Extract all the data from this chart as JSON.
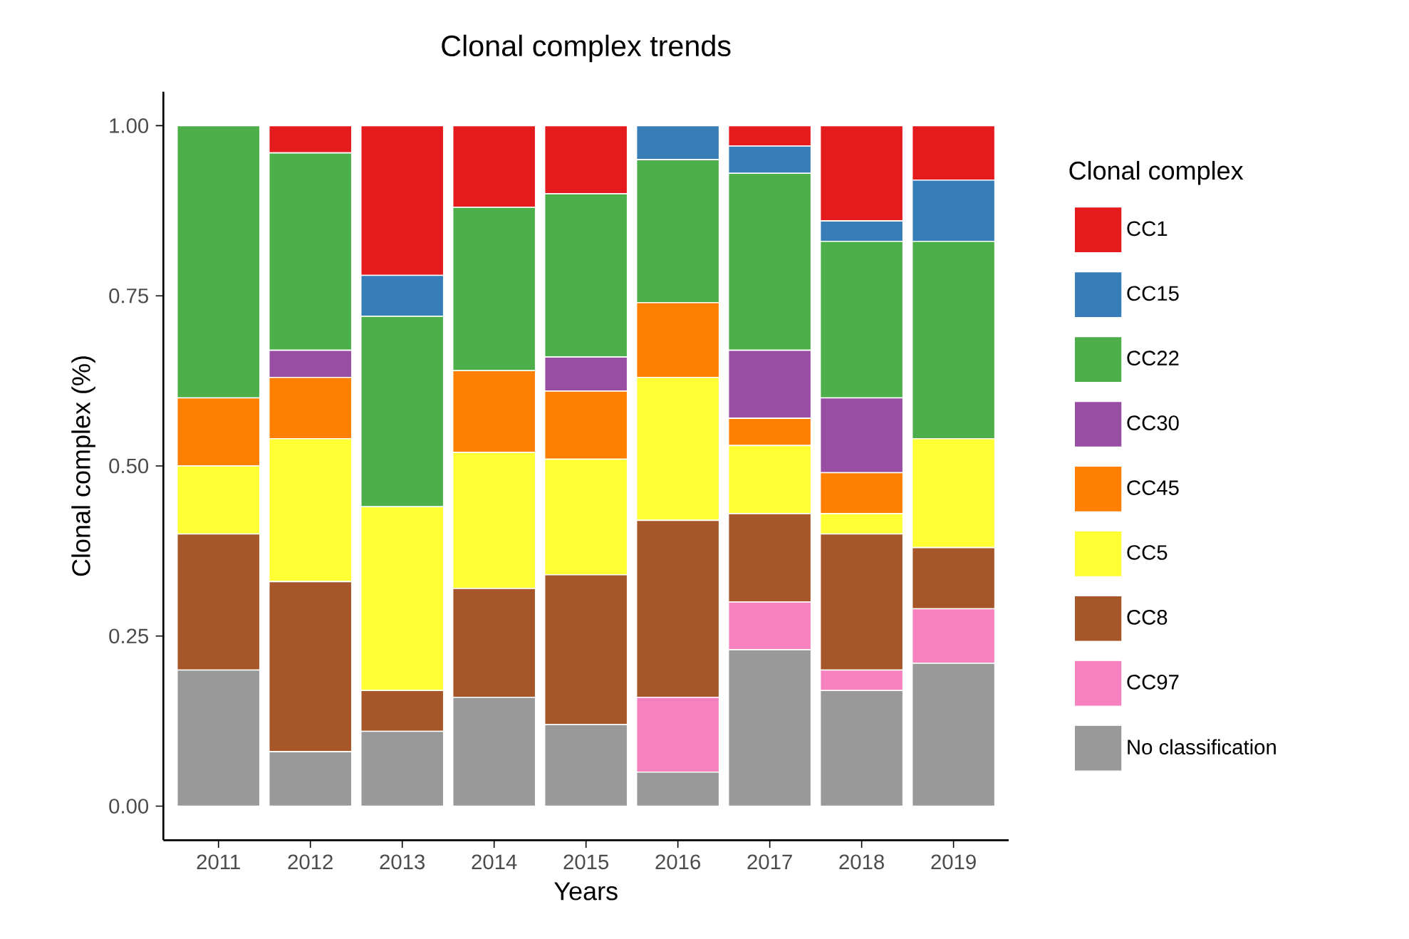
{
  "chart_data": {
    "type": "bar",
    "stacked": true,
    "title": "Clonal complex trends",
    "xlabel": "Years",
    "ylabel": "Clonal complex (%)",
    "legend_title": "Clonal complex",
    "legend": "right",
    "grid": false,
    "categories": [
      "2011",
      "2012",
      "2013",
      "2014",
      "2015",
      "2016",
      "2017",
      "2018",
      "2019"
    ],
    "ylim": [
      -0.05,
      1.05
    ],
    "yticks": [
      {
        "value": 0,
        "label": "0.00"
      },
      {
        "value": 0.25,
        "label": "0.25"
      },
      {
        "value": 0.5,
        "label": "0.50"
      },
      {
        "value": 0.75,
        "label": "0.75"
      },
      {
        "value": 1,
        "label": "1.00"
      }
    ],
    "series": [
      {
        "name": "No classification",
        "color": "#999999",
        "values": [
          0.2,
          0.08,
          0.11,
          0.16,
          0.12,
          0.05,
          0.23,
          0.17,
          0.21
        ]
      },
      {
        "name": "CC97",
        "color": "#f781bf",
        "values": [
          null,
          null,
          null,
          null,
          null,
          0.11,
          0.07,
          0.03,
          0.08
        ]
      },
      {
        "name": "CC8",
        "color": "#a65628",
        "values": [
          0.2,
          0.25,
          0.06,
          0.16,
          0.22,
          0.26,
          0.13,
          0.2,
          0.09
        ]
      },
      {
        "name": "CC5",
        "color": "#ffff33",
        "values": [
          0.1,
          0.21,
          0.27,
          0.2,
          0.17,
          0.21,
          0.1,
          0.03,
          0.16
        ]
      },
      {
        "name": "CC45",
        "color": "#ff7f00",
        "values": [
          0.1,
          0.09,
          null,
          0.12,
          0.1,
          0.11,
          0.04,
          0.06,
          null
        ]
      },
      {
        "name": "CC30",
        "color": "#984ea3",
        "values": [
          null,
          0.04,
          null,
          null,
          0.05,
          null,
          0.1,
          0.11,
          null
        ]
      },
      {
        "name": "CC22",
        "color": "#4daf4a",
        "values": [
          0.4,
          0.29,
          0.28,
          0.24,
          0.24,
          0.21,
          0.26,
          0.23,
          0.29
        ]
      },
      {
        "name": "CC15",
        "color": "#377eb8",
        "values": [
          null,
          null,
          0.06,
          null,
          null,
          0.05,
          0.04,
          0.03,
          0.09
        ]
      },
      {
        "name": "CC1",
        "color": "#e41a1c",
        "values": [
          null,
          0.04,
          0.22,
          0.12,
          0.1,
          null,
          0.03,
          0.14,
          0.08
        ]
      }
    ]
  }
}
